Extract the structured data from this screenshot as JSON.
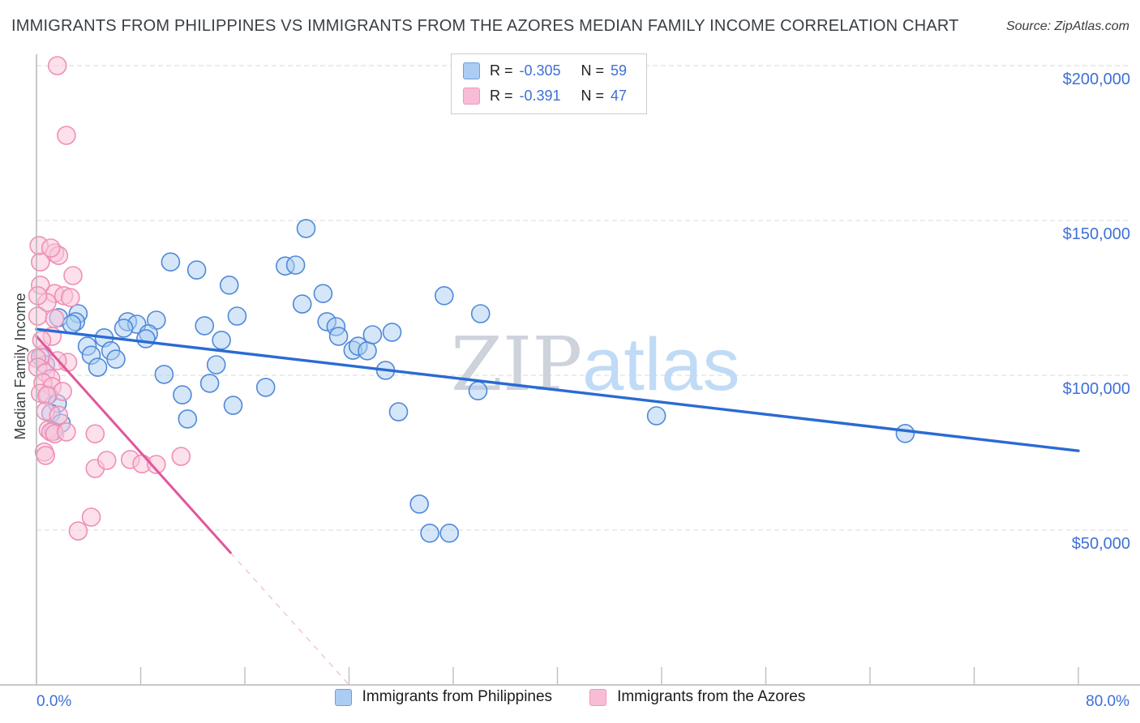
{
  "header": {
    "title": "IMMIGRANTS FROM PHILIPPINES VS IMMIGRANTS FROM THE AZORES MEDIAN FAMILY INCOME CORRELATION CHART",
    "source": "Source: ZipAtlas.com"
  },
  "stats_legend": {
    "rows": [
      {
        "series": "philippines",
        "r_label": "R =",
        "r_value": "-0.305",
        "n_label": "N =",
        "n_value": "59"
      },
      {
        "series": "azores",
        "r_label": "R =",
        "r_value": "-0.391",
        "n_label": "N =",
        "n_value": "47"
      }
    ]
  },
  "bottom_legend": {
    "items": [
      {
        "label": "Immigrants from Philippines"
      },
      {
        "label": "Immigrants from the Azores"
      }
    ]
  },
  "watermark": {
    "part1": "ZIP",
    "part2": "atlas"
  },
  "axes": {
    "ylabel": "Median Family Income",
    "x_min_label": "0.0%",
    "x_max_label": "80.0%",
    "x_range": [
      0,
      80
    ],
    "x_tick_step": 8,
    "y_tick_labels": [
      "$200,000",
      "$150,000",
      "$100,000",
      "$50,000"
    ],
    "y_tick_values": [
      200000,
      150000,
      100000,
      50000
    ],
    "grid": "dashed-horizontal"
  },
  "colors": {
    "axis_line": "#b5b5b5",
    "tick": "#c2c2c2",
    "gridline": "#d9d9d9",
    "axis_label_blue": "#3e70d8",
    "ylabel_color": "#3c4043",
    "watermark_zip": "#cdd2db",
    "watermark_atlas": "#c0dbf6"
  },
  "chart_data": {
    "type": "scatter",
    "title": "Immigrants from Philippines vs Immigrants from the Azores Median Family Income",
    "xlabel_unit": "percent immigrants",
    "ylabel_unit": "USD median family income",
    "xlim": [
      0,
      80
    ],
    "ylim": [
      0,
      203700
    ],
    "legend_position": "top-center",
    "series": [
      {
        "name": "Immigrants from Philippines",
        "r": -0.305,
        "n": 59,
        "fill": "#aacdf2",
        "fill_opacity": 0.5,
        "stroke": "#5088d8",
        "trend_color": "#2a6bd2",
        "trend_width": 3.4,
        "trend": {
          "x1": 0,
          "y1": 114900,
          "x2": 80,
          "y2": 75600
        },
        "points": [
          [
            10.3,
            136600
          ],
          [
            12.3,
            134000
          ],
          [
            14.8,
            129100
          ],
          [
            20.7,
            147400
          ],
          [
            19.1,
            135300
          ],
          [
            19.9,
            135600
          ],
          [
            22.0,
            126400
          ],
          [
            20.4,
            123000
          ],
          [
            22.3,
            117300
          ],
          [
            23.0,
            115700
          ],
          [
            23.2,
            112600
          ],
          [
            24.3,
            108100
          ],
          [
            24.7,
            109400
          ],
          [
            25.4,
            107900
          ],
          [
            25.8,
            113100
          ],
          [
            27.3,
            113900
          ],
          [
            31.3,
            125700
          ],
          [
            34.1,
            119900
          ],
          [
            26.8,
            101600
          ],
          [
            17.6,
            96100
          ],
          [
            33.9,
            95000
          ],
          [
            27.8,
            88200
          ],
          [
            29.4,
            58400
          ],
          [
            30.2,
            49000
          ],
          [
            31.7,
            49000
          ],
          [
            47.6,
            86900
          ],
          [
            66.7,
            81200
          ],
          [
            1.7,
            118600
          ],
          [
            3.2,
            119900
          ],
          [
            3.0,
            117300
          ],
          [
            2.7,
            116500
          ],
          [
            7.0,
            117300
          ],
          [
            7.7,
            116500
          ],
          [
            6.7,
            115200
          ],
          [
            9.2,
            117800
          ],
          [
            8.6,
            113400
          ],
          [
            8.4,
            111800
          ],
          [
            5.2,
            112100
          ],
          [
            3.9,
            109400
          ],
          [
            5.7,
            107900
          ],
          [
            4.2,
            106500
          ],
          [
            6.1,
            105200
          ],
          [
            4.7,
            102600
          ],
          [
            12.9,
            116000
          ],
          [
            14.2,
            111300
          ],
          [
            15.4,
            119100
          ],
          [
            13.8,
            103400
          ],
          [
            13.3,
            97400
          ],
          [
            9.8,
            100300
          ],
          [
            11.2,
            93700
          ],
          [
            11.6,
            85900
          ],
          [
            15.1,
            90300
          ],
          [
            0.3,
            106000
          ],
          [
            0.7,
            103400
          ],
          [
            0.9,
            93700
          ],
          [
            1.6,
            90900
          ],
          [
            1.1,
            87700
          ],
          [
            1.9,
            84500
          ],
          [
            1.3,
            81900
          ]
        ]
      },
      {
        "name": "Immigrants from the Azores",
        "r": -0.391,
        "n": 47,
        "fill": "#f9c6da",
        "fill_opacity": 0.55,
        "stroke": "#ee8fb4",
        "trend_color": "#e0579b",
        "trend_width": 3,
        "trend": {
          "x1": 0,
          "y1": 112600,
          "x2": 14.9,
          "y2": 42700
        },
        "trend_extension": {
          "x1": 14.9,
          "y1": 42700,
          "x2": 24.0,
          "y2": 0,
          "color": "#edc4d4",
          "width": 1.4
        },
        "points": [
          [
            1.6,
            200000
          ],
          [
            2.3,
            177500
          ],
          [
            1.4,
            139500
          ],
          [
            1.7,
            138700
          ],
          [
            0.3,
            136600
          ],
          [
            2.8,
            132200
          ],
          [
            0.3,
            129100
          ],
          [
            1.4,
            126400
          ],
          [
            2.1,
            125700
          ],
          [
            2.6,
            125100
          ],
          [
            0.8,
            123500
          ],
          [
            0.1,
            119100
          ],
          [
            1.4,
            118300
          ],
          [
            1.2,
            112600
          ],
          [
            0.5,
            106800
          ],
          [
            0.0,
            105500
          ],
          [
            2.4,
            104200
          ],
          [
            0.1,
            102600
          ],
          [
            0.7,
            100800
          ],
          [
            1.1,
            98900
          ],
          [
            0.5,
            97600
          ],
          [
            1.2,
            96300
          ],
          [
            2.0,
            94800
          ],
          [
            0.3,
            94200
          ],
          [
            0.8,
            93400
          ],
          [
            0.7,
            88400
          ],
          [
            1.7,
            87100
          ],
          [
            0.9,
            82400
          ],
          [
            1.1,
            81700
          ],
          [
            1.4,
            81100
          ],
          [
            2.3,
            81700
          ],
          [
            0.6,
            75200
          ],
          [
            4.5,
            81100
          ],
          [
            0.7,
            74100
          ],
          [
            4.5,
            69900
          ],
          [
            5.4,
            72500
          ],
          [
            7.2,
            72800
          ],
          [
            8.1,
            71400
          ],
          [
            9.2,
            71200
          ],
          [
            11.1,
            73800
          ],
          [
            4.2,
            54200
          ],
          [
            3.2,
            49700
          ],
          [
            0.2,
            141900
          ],
          [
            1.1,
            141100
          ],
          [
            0.1,
            125700
          ],
          [
            0.4,
            111300
          ],
          [
            1.6,
            104700
          ]
        ]
      }
    ]
  }
}
